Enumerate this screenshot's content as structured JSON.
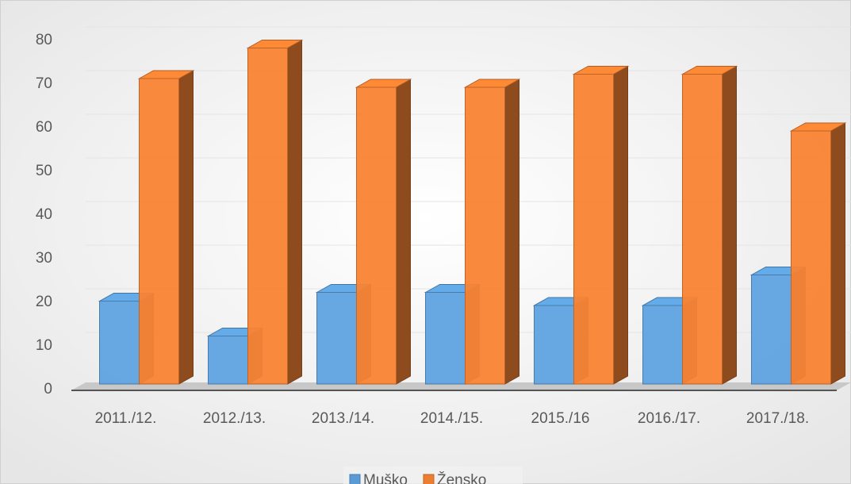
{
  "chart_data": {
    "type": "bar3d",
    "categories": [
      "2011./12.",
      "2012./13.",
      "2013./14.",
      "2014./15.",
      "2015./16",
      "2016./17.",
      "2017./18."
    ],
    "series": [
      {
        "name": "Muško",
        "color": "#5b9bd5",
        "values": [
          19,
          11,
          21,
          21,
          18,
          18,
          25
        ]
      },
      {
        "name": "Žensko",
        "color": "#ed7d31",
        "values": [
          70,
          77,
          68,
          68,
          71,
          71,
          58
        ]
      }
    ],
    "ylim": [
      0,
      80
    ],
    "yticks": [
      0,
      10,
      20,
      30,
      40,
      50,
      60,
      70,
      80
    ],
    "grid": true,
    "legend": "bottom"
  }
}
